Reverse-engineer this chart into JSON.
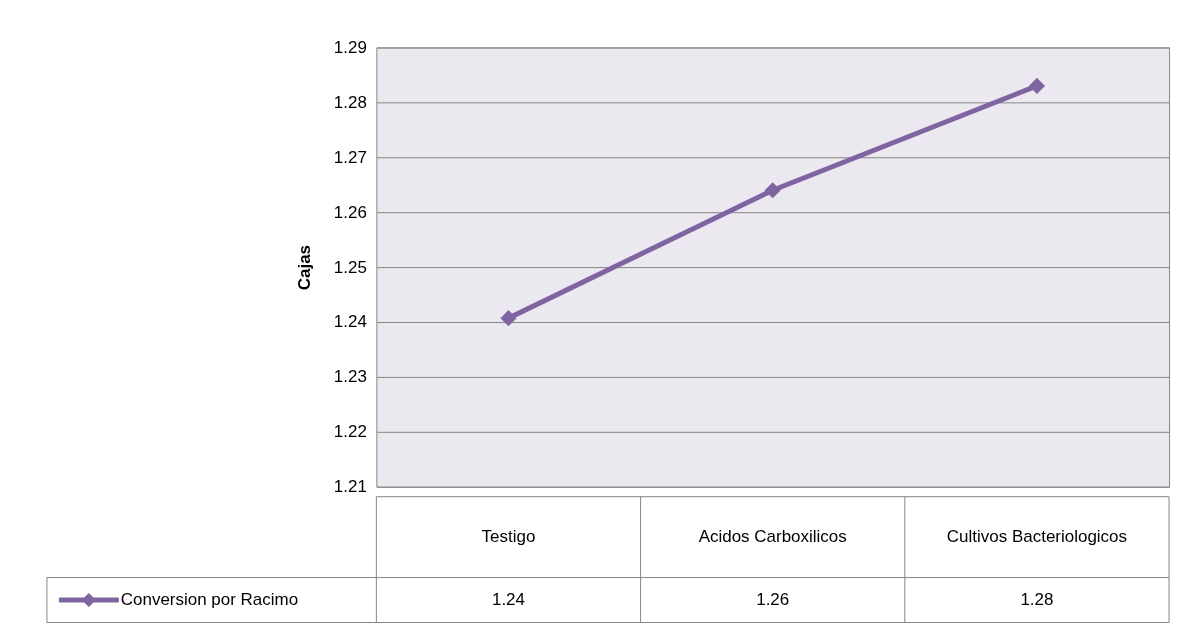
{
  "chart_data": {
    "type": "line",
    "ylabel": "Cajas",
    "categories": [
      "Testigo",
      "Acidos Carboxilicos",
      "Cultivos Bacteriologicos"
    ],
    "series": [
      {
        "name": "Conversion por Racimo",
        "color": "#8064a2",
        "values": [
          1.2407,
          1.264,
          1.283
        ],
        "value_labels": [
          "1.24",
          "1.26",
          "1.28"
        ]
      }
    ],
    "ylim": [
      1.21,
      1.29
    ],
    "yticks": [
      1.21,
      1.22,
      1.23,
      1.24,
      1.25,
      1.26,
      1.27,
      1.28,
      1.29
    ],
    "grid": "y",
    "marker": "diamond",
    "line_style": "solid",
    "legend": "bottom left"
  }
}
